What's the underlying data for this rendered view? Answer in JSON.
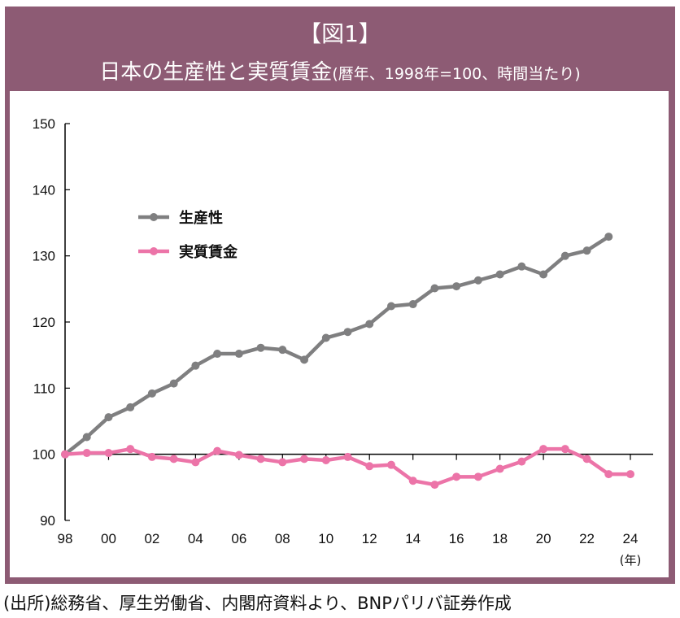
{
  "header": {
    "figure_label": "【図1】",
    "title": "日本の生産性と実質賃金",
    "subtitle": "(暦年、1998年=100、時間当たり)"
  },
  "source": "(出所)総務省、厚生労働省、内閣府資料より、BNPパリバ証券作成",
  "chart_data": {
    "type": "line",
    "x": [
      1998,
      1999,
      2000,
      2001,
      2002,
      2003,
      2004,
      2005,
      2006,
      2007,
      2008,
      2009,
      2010,
      2011,
      2012,
      2013,
      2014,
      2015,
      2016,
      2017,
      2018,
      2019,
      2020,
      2021,
      2022,
      2023,
      2024
    ],
    "series": [
      {
        "name": "生産性",
        "color": "#7f7f80",
        "values": [
          100,
          102.6,
          105.6,
          107.1,
          109.2,
          110.7,
          113.4,
          115.2,
          115.2,
          116.1,
          115.8,
          114.3,
          117.6,
          118.5,
          119.7,
          122.4,
          122.7,
          125.1,
          125.4,
          126.3,
          127.2,
          128.4,
          127.2,
          130.0,
          130.8,
          132.9,
          null
        ]
      },
      {
        "name": "実質賃金",
        "color": "#ec74a8",
        "values": [
          100,
          100.2,
          100.2,
          100.8,
          99.6,
          99.3,
          98.8,
          100.5,
          99.9,
          99.3,
          98.8,
          99.3,
          99.1,
          99.6,
          98.2,
          98.4,
          96.0,
          95.4,
          96.6,
          96.6,
          97.8,
          98.9,
          100.8,
          100.8,
          99.3,
          97.0,
          97.0
        ]
      }
    ],
    "ylim": [
      90,
      150
    ],
    "yticks": [
      "90",
      "100",
      "110",
      "120",
      "130",
      "140",
      "150"
    ],
    "xticks": [
      "98",
      "00",
      "02",
      "04",
      "06",
      "08",
      "10",
      "12",
      "14",
      "16",
      "18",
      "20",
      "22",
      "24"
    ],
    "xlabel": "(年)",
    "ylabel": "",
    "legend_placement": "upper-left"
  }
}
